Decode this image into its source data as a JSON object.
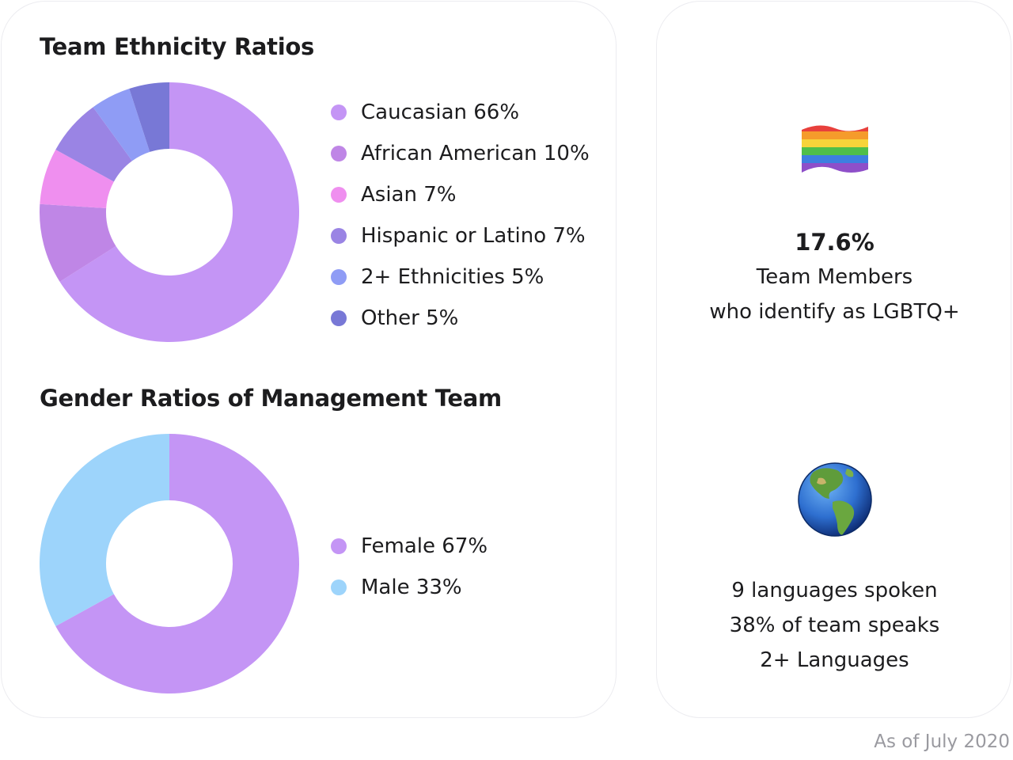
{
  "chart_data": [
    {
      "type": "pie",
      "title": "Team Ethnicity Ratios",
      "donut": true,
      "categories": [
        "Caucasian",
        "African American",
        "Asian",
        "Hispanic or Latino",
        "2+ Ethnicities",
        "Other"
      ],
      "values": [
        66,
        10,
        7,
        7,
        5,
        5
      ],
      "legend_labels": [
        "Caucasian 66%",
        "African American 10%",
        "Asian 7%",
        "Hispanic or Latino 7%",
        "2+ Ethnicities 5%",
        "Other 5%"
      ],
      "colors": [
        "#c495f5",
        "#bf86e6",
        "#ef8fef",
        "#9a84e4",
        "#8f9cf5",
        "#7878d6"
      ],
      "legend_placement": "right"
    },
    {
      "type": "pie",
      "title": "Gender Ratios of Management Team",
      "donut": true,
      "categories": [
        "Female",
        "Male"
      ],
      "values": [
        67,
        33
      ],
      "legend_labels": [
        "Female 67%",
        "Male 33%"
      ],
      "colors": [
        "#c495f5",
        "#9dd4fb"
      ],
      "legend_placement": "right"
    }
  ],
  "stats": {
    "lgbtq": {
      "icon": "rainbow-flag-icon",
      "value": "17.6%",
      "line1": "Team Members",
      "line2": "who identify as LGBTQ+"
    },
    "languages": {
      "icon": "globe-americas-icon",
      "line1": "9 languages spoken",
      "line2": "38% of team speaks",
      "line3": "2+ Languages"
    }
  },
  "footer": {
    "as_of": "As of July 2020"
  }
}
